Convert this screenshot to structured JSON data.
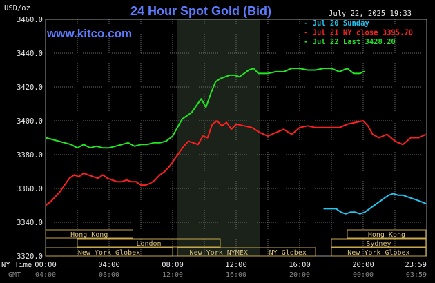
{
  "chart_data": {
    "type": "line",
    "title": "24 Hour Spot Gold (Bid)",
    "ylabel": "USD/oz",
    "ylim": [
      3320,
      3460
    ],
    "yticks": [
      "3460.0",
      "3440.0",
      "3420.0",
      "3400.0",
      "3380.0",
      "3360.0",
      "3340.0",
      "3320.0"
    ],
    "xlim": [
      0,
      24
    ],
    "ny_time_label": "NY Time",
    "gmt_label": "GMT",
    "xticks_ny": [
      "00:00",
      "04:00",
      "08:00",
      "12:00",
      "16:00",
      "20:00",
      "23:59"
    ],
    "xticks_gmt": [
      "04:00",
      "08:00",
      "12:00",
      "16:00",
      "20:00",
      "00:00",
      "03:59"
    ],
    "date_label": "July 22, 2025 19:33",
    "grid": true,
    "legend_position": "top-right",
    "highlight_range": [
      8.3,
      13.5
    ],
    "series": [
      {
        "name": "- Jul 20 Sunday",
        "color": "#22c4f0",
        "x": [
          17.5,
          18.0,
          18.3,
          18.6,
          18.9,
          19.2,
          19.5,
          19.8,
          20.1,
          20.4,
          20.7,
          21.0,
          21.3,
          21.6,
          21.9,
          22.2,
          22.5,
          22.8,
          23.1,
          23.4,
          23.7,
          23.95
        ],
        "y": [
          3348,
          3348,
          3348,
          3346,
          3345,
          3346,
          3346,
          3345,
          3346,
          3348,
          3350,
          3352,
          3354,
          3356,
          3357,
          3356,
          3356,
          3355,
          3354,
          3353,
          3352,
          3351
        ]
      },
      {
        "name": "- Jul 21 NY close 3395.70",
        "color": "#ff1f1f",
        "x": [
          0.0,
          0.3,
          0.6,
          0.9,
          1.2,
          1.5,
          1.8,
          2.1,
          2.4,
          2.7,
          3.0,
          3.3,
          3.6,
          3.9,
          4.2,
          4.5,
          4.8,
          5.1,
          5.4,
          5.7,
          6.0,
          6.3,
          6.6,
          6.9,
          7.2,
          7.5,
          7.8,
          8.1,
          8.4,
          8.7,
          9.0,
          9.3,
          9.6,
          9.9,
          10.2,
          10.5,
          10.8,
          11.1,
          11.4,
          11.7,
          12.0,
          12.5,
          13.0,
          13.5,
          14.0,
          14.5,
          15.0,
          15.5,
          16.0,
          16.5,
          17.0,
          17.5,
          18.0,
          18.5,
          19.0,
          19.5,
          20.0,
          20.3,
          20.6,
          21.0,
          21.5,
          22.0,
          22.5,
          23.0,
          23.5,
          23.95
        ],
        "y": [
          3350,
          3352,
          3355,
          3358,
          3362,
          3366,
          3368,
          3367,
          3369,
          3368,
          3367,
          3366,
          3368,
          3366,
          3365,
          3364,
          3364,
          3365,
          3364,
          3364,
          3362,
          3362,
          3363,
          3365,
          3368,
          3370,
          3373,
          3377,
          3381,
          3385,
          3388,
          3387,
          3386,
          3391,
          3390,
          3398,
          3400,
          3397,
          3399,
          3395,
          3398,
          3397,
          3396,
          3393,
          3391,
          3393,
          3395,
          3392,
          3396,
          3397,
          3396,
          3396,
          3396,
          3396,
          3398,
          3399,
          3400,
          3397,
          3392,
          3390,
          3392,
          3388,
          3386,
          3390,
          3390,
          3392
        ]
      },
      {
        "name": "- Jul 22 Last 3428.20",
        "color": "#22e622",
        "x": [
          0.0,
          0.4,
          0.8,
          1.2,
          1.6,
          2.0,
          2.4,
          2.8,
          3.2,
          3.6,
          4.0,
          4.4,
          4.8,
          5.2,
          5.6,
          6.0,
          6.4,
          6.8,
          7.2,
          7.6,
          8.0,
          8.3,
          8.6,
          8.9,
          9.2,
          9.5,
          9.8,
          10.1,
          10.4,
          10.7,
          11.0,
          11.3,
          11.6,
          11.9,
          12.2,
          12.5,
          12.8,
          13.1,
          13.4,
          13.7,
          14.0,
          14.5,
          15.0,
          15.5,
          16.0,
          16.5,
          17.0,
          17.5,
          18.0,
          18.5,
          19.0,
          19.4,
          19.8,
          20.0,
          20.1
        ],
        "y": [
          3390,
          3389,
          3388,
          3387,
          3386,
          3384,
          3386,
          3384,
          3385,
          3384,
          3384,
          3385,
          3386,
          3387,
          3385,
          3386,
          3386,
          3387,
          3387,
          3388,
          3391,
          3396,
          3401,
          3403,
          3405,
          3409,
          3413,
          3408,
          3416,
          3423,
          3425,
          3426,
          3427,
          3427,
          3426,
          3428,
          3430,
          3431,
          3428,
          3428,
          3428,
          3429,
          3429,
          3431,
          3431,
          3430,
          3430,
          3431,
          3431,
          3429,
          3431,
          3428,
          3428,
          3429,
          3429
        ]
      }
    ],
    "sessions": [
      {
        "name": "Hong Kong",
        "row": 0,
        "range": [
          0.0,
          5.5
        ]
      },
      {
        "name": "Hong Kong",
        "row": 0,
        "range": [
          19.0,
          23.95
        ]
      },
      {
        "name": "London",
        "row": 1,
        "range": [
          2.0,
          11.0
        ]
      },
      {
        "name": "Sydney",
        "row": 1,
        "range": [
          18.0,
          23.95
        ]
      },
      {
        "name": "New York Globex",
        "row": 2,
        "range": [
          0.0,
          8.0
        ]
      },
      {
        "name": "New York NYMEX",
        "row": 2,
        "range": [
          8.3,
          13.5
        ]
      },
      {
        "name": "NY Globex",
        "row": 2,
        "range": [
          13.5,
          17.0
        ]
      },
      {
        "name": "New York Globex",
        "row": 2,
        "range": [
          18.0,
          23.95
        ]
      }
    ]
  },
  "header": {
    "site": "www.kitco.com"
  },
  "colors": {
    "background": "#000000",
    "grid": "#6e6e6e",
    "highlight": "#1a221a",
    "title": "#5b7cff",
    "session_border": "#c8a84a",
    "session_text": "#d9c080"
  }
}
